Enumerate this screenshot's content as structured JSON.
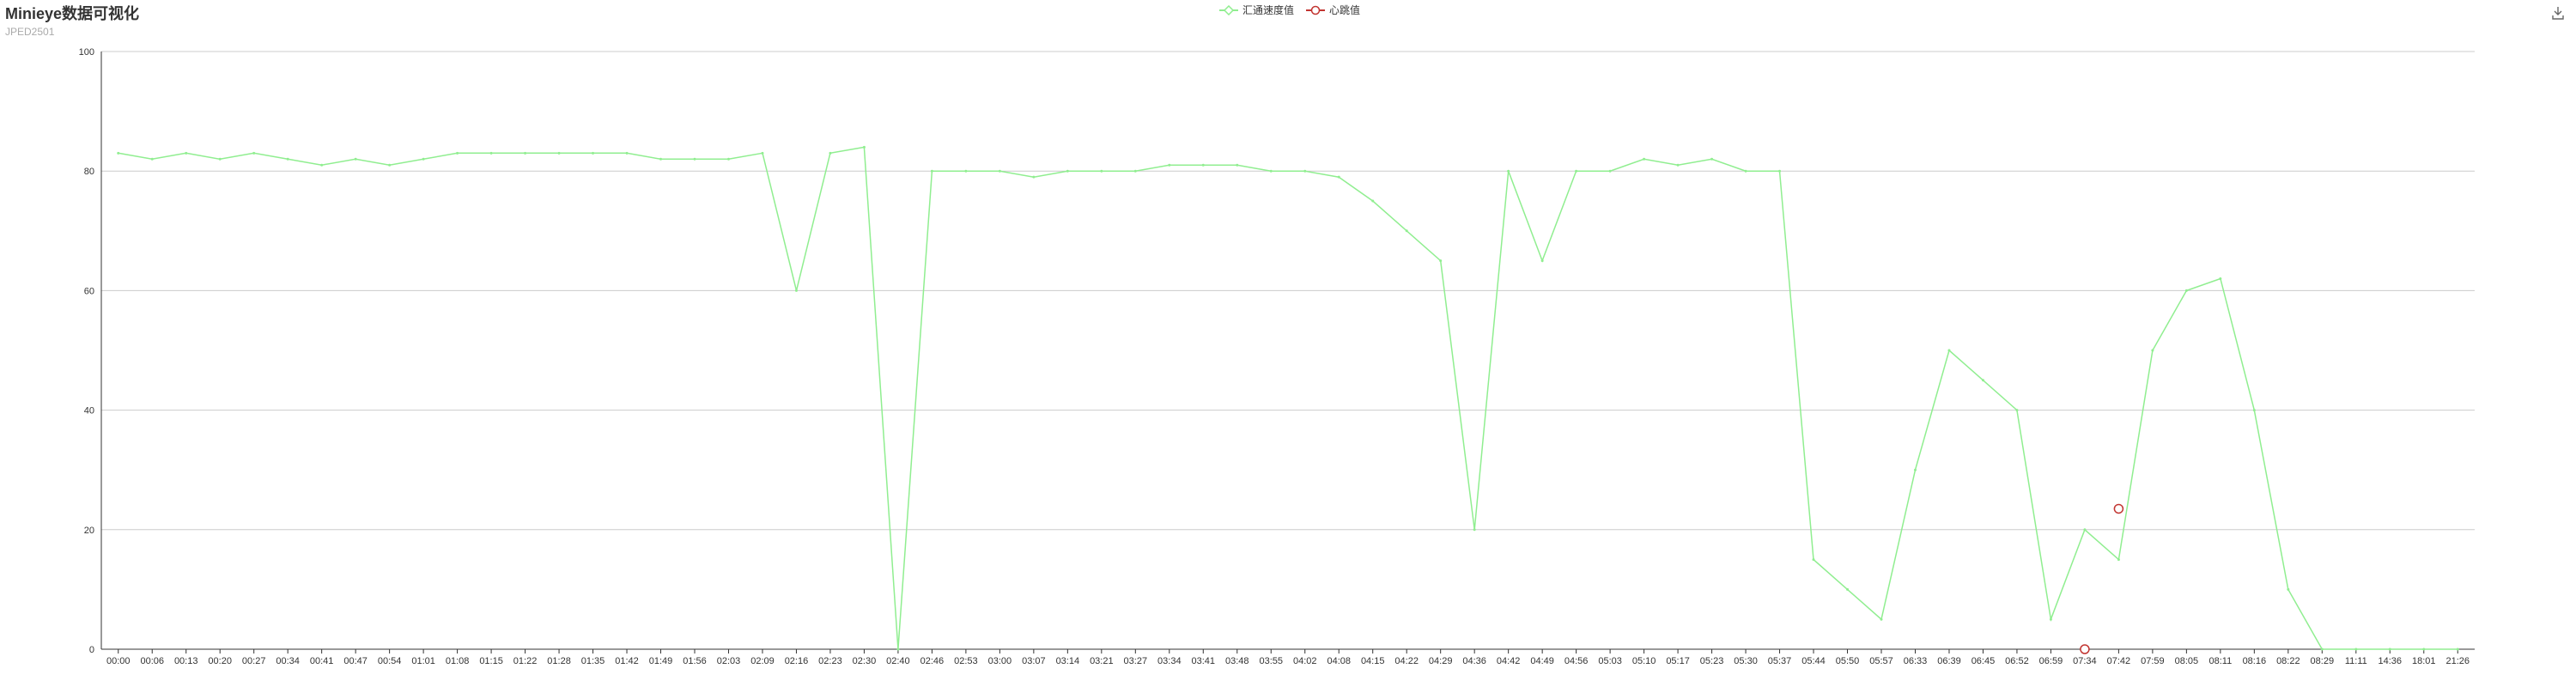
{
  "title": "Minieye数据可视化",
  "subtitle": "JPED2501",
  "toolbox": {
    "icon": "download-icon"
  },
  "legend": [
    {
      "name": "汇通速度值",
      "color": "#90ee90",
      "symbol": "diamond"
    },
    {
      "name": "心跳值",
      "color": "#c23531",
      "symbol": "circle"
    }
  ],
  "colors": {
    "speed": "#90ee90",
    "heartbeat": "#c23531",
    "grid": "#cccccc",
    "axis": "#333333"
  },
  "chart_data": {
    "type": "line",
    "title": "Minieye数据可视化",
    "subtitle": "JPED2501",
    "ylim": [
      0,
      100
    ],
    "yticks": [
      0,
      20,
      40,
      60,
      80,
      100
    ],
    "grid": "horizontal",
    "legend_position": "top-center",
    "categories": [
      "00:00",
      "00:06",
      "00:13",
      "00:20",
      "00:27",
      "00:34",
      "00:41",
      "00:47",
      "00:54",
      "01:01",
      "01:08",
      "01:15",
      "01:22",
      "01:28",
      "01:35",
      "01:42",
      "01:49",
      "01:56",
      "02:03",
      "02:09",
      "02:16",
      "02:23",
      "02:30",
      "02:40",
      "02:46",
      "02:53",
      "03:00",
      "03:07",
      "03:14",
      "03:21",
      "03:27",
      "03:34",
      "03:41",
      "03:48",
      "03:55",
      "04:02",
      "04:08",
      "04:15",
      "04:22",
      "04:29",
      "04:36",
      "04:42",
      "04:49",
      "04:56",
      "05:03",
      "05:10",
      "05:17",
      "05:23",
      "05:30",
      "05:37",
      "05:44",
      "05:50",
      "05:57",
      "06:33",
      "06:39",
      "06:45",
      "06:52",
      "06:59",
      "07:34",
      "07:42",
      "07:59",
      "08:05",
      "08:11",
      "08:16",
      "08:22",
      "08:29",
      "11:11",
      "14:36",
      "18:01",
      "21:26"
    ],
    "series": [
      {
        "name": "汇通速度值",
        "values": [
          83,
          82,
          83,
          82,
          83,
          82,
          81,
          82,
          81,
          82,
          83,
          83,
          83,
          83,
          83,
          83,
          82,
          82,
          82,
          83,
          60,
          83,
          84,
          0,
          80,
          80,
          80,
          79,
          80,
          80,
          80,
          81,
          81,
          81,
          80,
          80,
          79,
          75,
          70,
          65,
          20,
          80,
          65,
          80,
          80,
          82,
          81,
          82,
          80,
          80,
          15,
          10,
          5,
          30,
          50,
          45,
          40,
          5,
          20,
          15,
          50,
          60,
          62,
          40,
          10,
          0,
          0,
          0,
          0,
          0
        ]
      },
      {
        "name": "心跳值",
        "points": [
          {
            "x": "07:34",
            "y": 0
          },
          {
            "x": "07:42",
            "y": 23.5
          }
        ]
      }
    ]
  }
}
